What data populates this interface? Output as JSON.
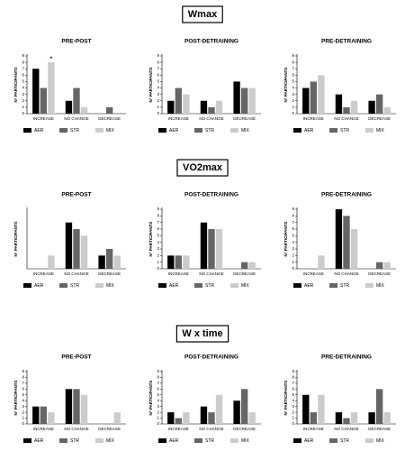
{
  "sections": [
    {
      "title": "Wmax"
    },
    {
      "title": "VO2max"
    },
    {
      "title": "W x time"
    }
  ],
  "chart_data": [
    {
      "type": "bar",
      "title": "PRE-POST",
      "y_label": "N° PARTICIPANTS",
      "annotation": "*",
      "categories": [
        "INCREASE",
        "NO CHANGE",
        "DECREASE"
      ],
      "ylim": [
        0,
        9
      ],
      "yticks": [
        0,
        1,
        2,
        3,
        4,
        5,
        6,
        7,
        8,
        9
      ],
      "series": [
        {
          "name": "AER",
          "color": "#000000",
          "values": [
            7,
            2,
            0
          ]
        },
        {
          "name": "STR",
          "color": "#666666",
          "values": [
            4,
            4,
            1
          ]
        },
        {
          "name": "MIX",
          "color": "#cccccc",
          "values": [
            8,
            1,
            0
          ]
        }
      ]
    },
    {
      "type": "bar",
      "title": "POST-DETRAINING",
      "y_label": "N° PARTICIPANTS",
      "categories": [
        "INCREASE",
        "NO CHANGE",
        "DECREASE"
      ],
      "ylim": [
        0,
        9
      ],
      "yticks": [
        0,
        1,
        2,
        3,
        4,
        5,
        6,
        7,
        8,
        9
      ],
      "series": [
        {
          "name": "AER",
          "color": "#000000",
          "values": [
            2,
            2,
            5
          ]
        },
        {
          "name": "STR",
          "color": "#666666",
          "values": [
            4,
            1,
            4
          ]
        },
        {
          "name": "MIX",
          "color": "#cccccc",
          "values": [
            3,
            2,
            4
          ]
        }
      ]
    },
    {
      "type": "bar",
      "title": "PRE-DETRAINING",
      "y_label": "N° PARTICIPANTS",
      "categories": [
        "INCREASE",
        "NO CHANGE",
        "DECREASE"
      ],
      "ylim": [
        0,
        9
      ],
      "yticks": [
        0,
        1,
        2,
        3,
        4,
        5,
        6,
        7,
        8,
        9
      ],
      "series": [
        {
          "name": "AER",
          "color": "#000000",
          "values": [
            4,
            3,
            2
          ]
        },
        {
          "name": "STR",
          "color": "#666666",
          "values": [
            5,
            1,
            3
          ]
        },
        {
          "name": "MIX",
          "color": "#cccccc",
          "values": [
            6,
            2,
            1
          ]
        }
      ]
    },
    {
      "type": "bar",
      "title": "PRE-POST",
      "y_label": "N° PARTICIPANTS",
      "categories": [
        "INCREASE",
        "NO CHANGE",
        "DECREASE"
      ],
      "ylim": [
        0,
        9
      ],
      "series": [
        {
          "name": "AER",
          "color": "#000000",
          "values": [
            0,
            7,
            2
          ]
        },
        {
          "name": "STR",
          "color": "#666666",
          "values": [
            0,
            6,
            3
          ]
        },
        {
          "name": "MIX",
          "color": "#cccccc",
          "values": [
            2,
            5,
            2
          ]
        }
      ]
    },
    {
      "type": "bar",
      "title": "POST-DETRAINING",
      "y_label": "N° PARTICIPANTS",
      "categories": [
        "INCREASE",
        "NO CHANGE",
        "DECREASE"
      ],
      "ylim": [
        0,
        9
      ],
      "yticks": [
        0,
        1,
        2,
        3,
        4,
        5,
        6,
        7,
        8,
        9
      ],
      "series": [
        {
          "name": "AER",
          "color": "#000000",
          "values": [
            2,
            7,
            0
          ]
        },
        {
          "name": "STR",
          "color": "#666666",
          "values": [
            2,
            6,
            1
          ]
        },
        {
          "name": "MIX",
          "color": "#cccccc",
          "values": [
            2,
            6,
            1
          ]
        }
      ]
    },
    {
      "type": "bar",
      "title": "PRE-DETRAINING",
      "y_label": "N° PARTICIPANTS",
      "categories": [
        "INCREASE",
        "NO CHANGE",
        "DECREASE"
      ],
      "ylim": [
        0,
        9
      ],
      "yticks": [
        0,
        1,
        2,
        3,
        4,
        5,
        6,
        7,
        8,
        9
      ],
      "series": [
        {
          "name": "AER",
          "color": "#000000",
          "values": [
            0,
            9,
            0
          ]
        },
        {
          "name": "STR",
          "color": "#666666",
          "values": [
            0,
            8,
            1
          ]
        },
        {
          "name": "MIX",
          "color": "#cccccc",
          "values": [
            2,
            6,
            1
          ]
        }
      ]
    },
    {
      "type": "bar",
      "title": "PRE-POST",
      "y_label": "N° PARTICIPANTS",
      "categories": [
        "INCREASE",
        "NO CHANGE",
        "DECREASE"
      ],
      "ylim": [
        0,
        9
      ],
      "yticks": [
        0,
        1,
        2,
        3,
        4,
        5,
        6,
        7,
        8,
        9
      ],
      "series": [
        {
          "name": "AER",
          "color": "#000000",
          "values": [
            3,
            6,
            0
          ]
        },
        {
          "name": "STR",
          "color": "#666666",
          "values": [
            3,
            6,
            0
          ]
        },
        {
          "name": "MIX",
          "color": "#cccccc",
          "values": [
            2,
            5,
            2
          ]
        }
      ]
    },
    {
      "type": "bar",
      "title": "POST-DETRAINING",
      "y_label": "N° PARTICIPANTS",
      "categories": [
        "INCREASE",
        "NO CHANGE",
        "DECREASE"
      ],
      "ylim": [
        0,
        9
      ],
      "yticks": [
        0,
        1,
        2,
        3,
        4,
        5,
        6,
        7,
        8,
        9
      ],
      "series": [
        {
          "name": "AER",
          "color": "#000000",
          "values": [
            2,
            3,
            4
          ]
        },
        {
          "name": "STR",
          "color": "#666666",
          "values": [
            1,
            2,
            6
          ]
        },
        {
          "name": "MIX",
          "color": "#cccccc",
          "values": [
            2,
            5,
            2
          ]
        }
      ]
    },
    {
      "type": "bar",
      "title": "PRE-DETRAINING",
      "y_label": "N° PARTICIPANTS",
      "categories": [
        "INCREASE",
        "NO CHANGE",
        "DECREASE"
      ],
      "ylim": [
        0,
        9
      ],
      "yticks": [
        0,
        1,
        2,
        3,
        4,
        5,
        6,
        7,
        8,
        9
      ],
      "series": [
        {
          "name": "AER",
          "color": "#000000",
          "values": [
            5,
            2,
            2
          ]
        },
        {
          "name": "STR",
          "color": "#666666",
          "values": [
            2,
            1,
            6
          ]
        },
        {
          "name": "MIX",
          "color": "#cccccc",
          "values": [
            5,
            2,
            2
          ]
        }
      ]
    }
  ]
}
